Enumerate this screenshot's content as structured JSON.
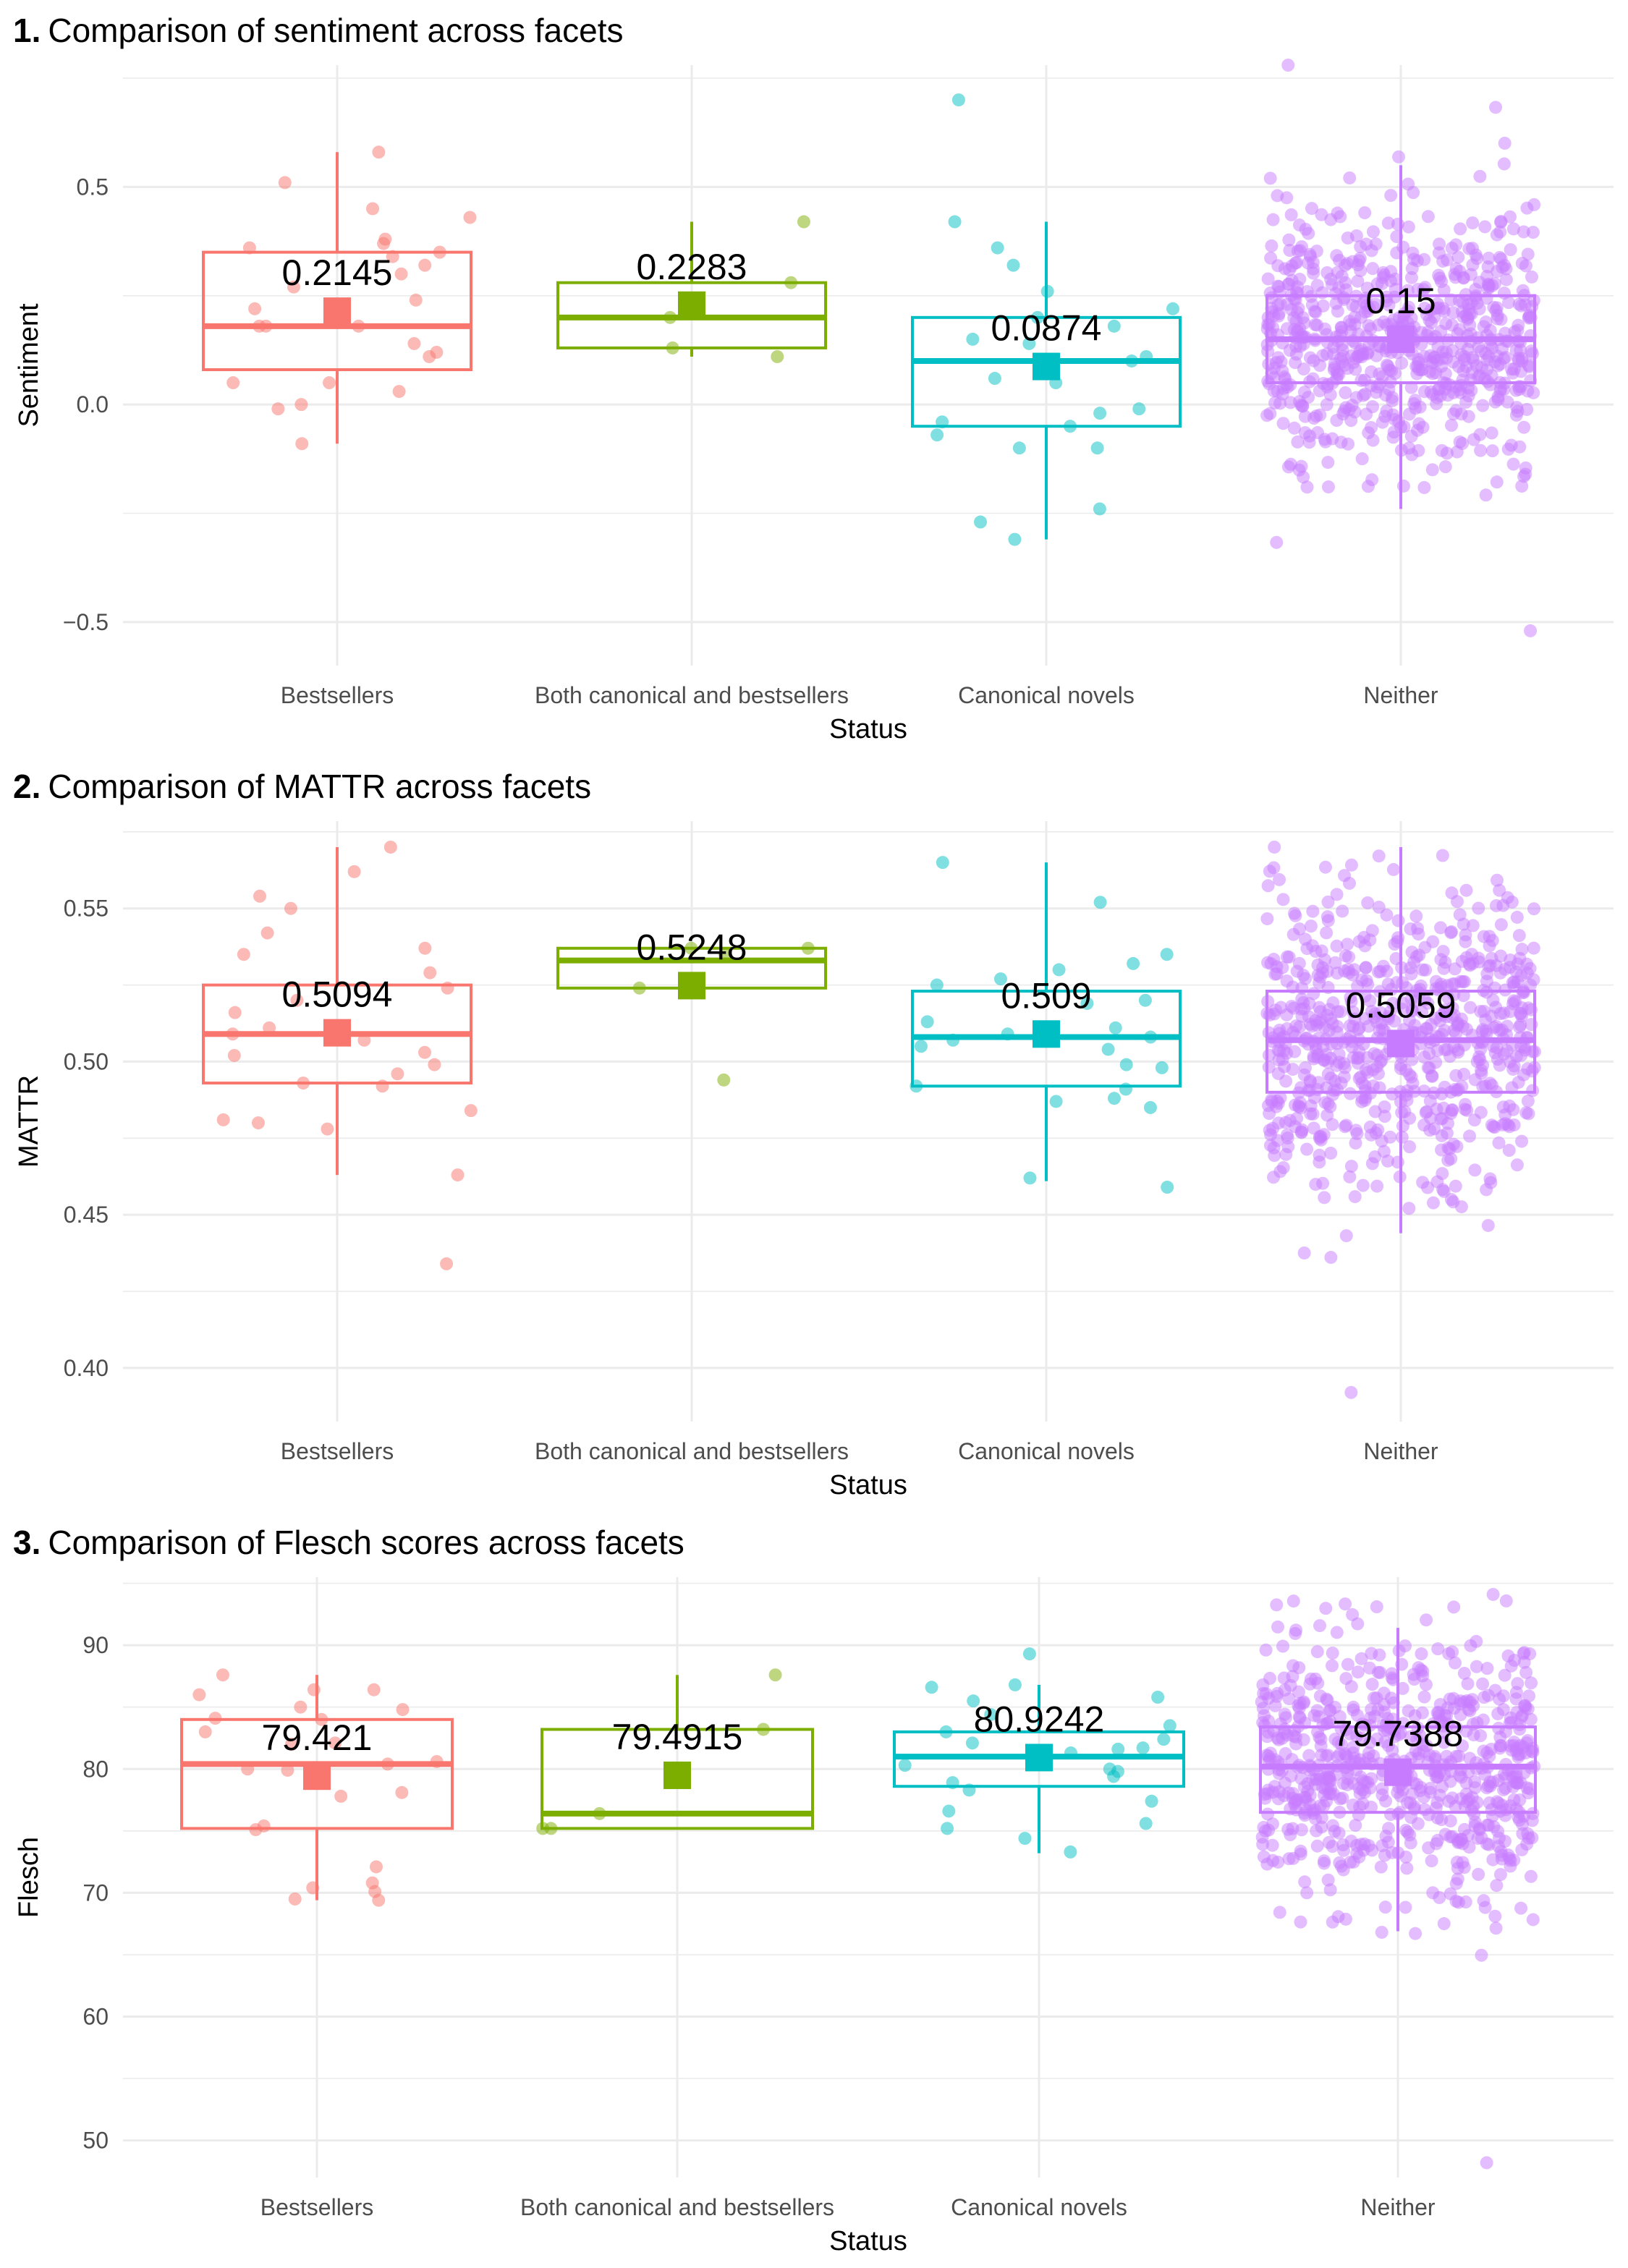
{
  "colors": {
    "Bestsellers": "#F8766D",
    "Both canonical and bestsellers": "#7CAE00",
    "Canonical novels": "#00BFC4",
    "Neither": "#C77CFF",
    "grid": "#EBEBEB",
    "axis_text": "#4D4D4D",
    "title_text": "#000000"
  },
  "chart_data": [
    {
      "type": "boxplot",
      "number": "1.",
      "title": "Comparison of sentiment across facets",
      "xlabel": "Status",
      "ylabel": "Sentiment",
      "ylim": [
        -0.6,
        0.78
      ],
      "yticks": [
        -0.5,
        0.0,
        0.5
      ],
      "ytick_labels": [
        "−0.5",
        "0.0",
        "0.5"
      ],
      "grid": true,
      "categories": [
        "Bestsellers",
        "Both canonical and bestsellers",
        "Canonical novels",
        "Neither"
      ],
      "boxes": [
        {
          "q1": 0.08,
          "median": 0.18,
          "q3": 0.35,
          "whisker_low": -0.09,
          "whisker_high": 0.58
        },
        {
          "q1": 0.13,
          "median": 0.2,
          "q3": 0.28,
          "whisker_low": 0.11,
          "whisker_high": 0.42
        },
        {
          "q1": -0.05,
          "median": 0.1,
          "q3": 0.2,
          "whisker_low": -0.31,
          "whisker_high": 0.42
        },
        {
          "q1": 0.05,
          "median": 0.15,
          "q3": 0.25,
          "whisker_low": -0.24,
          "whisker_high": 0.55
        }
      ],
      "means": [
        0.2145,
        0.2283,
        0.0874,
        0.15
      ],
      "mean_labels": [
        "0.2145",
        "0.2283",
        "0.0874",
        "0.15"
      ],
      "jitter_points": [
        [
          0.58,
          0.51,
          0.45,
          0.43,
          0.38,
          0.37,
          0.36,
          0.35,
          0.34,
          0.32,
          0.3,
          0.27,
          0.24,
          0.22,
          0.18,
          0.18,
          0.18,
          0.14,
          0.12,
          0.11,
          0.05,
          0.05,
          0.03,
          0.0,
          -0.01,
          -0.09
        ],
        [
          0.42,
          0.28,
          0.2,
          0.13,
          0.11
        ],
        [
          0.7,
          0.42,
          0.36,
          0.32,
          0.26,
          0.22,
          0.2,
          0.18,
          0.15,
          0.14,
          0.11,
          0.1,
          0.06,
          0.05,
          -0.01,
          -0.02,
          -0.04,
          -0.05,
          -0.07,
          -0.1,
          -0.1,
          -0.24,
          -0.27,
          -0.31
        ],
        {
          "generated": true,
          "n": 700,
          "center": 0.15,
          "spread": 0.14,
          "min": -0.52,
          "max": 0.78
        }
      ]
    },
    {
      "type": "boxplot",
      "number": "2.",
      "title": "Comparison of MATTR across facets",
      "xlabel": "Status",
      "ylabel": "MATTR",
      "ylim": [
        0.3825,
        0.5785
      ],
      "yticks": [
        0.4,
        0.45,
        0.5,
        0.55
      ],
      "ytick_labels": [
        "0.40",
        "0.45",
        "0.50",
        "0.55"
      ],
      "grid": true,
      "categories": [
        "Bestsellers",
        "Both canonical and bestsellers",
        "Canonical novels",
        "Neither"
      ],
      "boxes": [
        {
          "q1": 0.493,
          "median": 0.509,
          "q3": 0.525,
          "whisker_low": 0.463,
          "whisker_high": 0.57
        },
        {
          "q1": 0.524,
          "median": 0.533,
          "q3": 0.537,
          "whisker_low": 0.524,
          "whisker_high": 0.537
        },
        {
          "q1": 0.492,
          "median": 0.508,
          "q3": 0.523,
          "whisker_low": 0.461,
          "whisker_high": 0.565
        },
        {
          "q1": 0.49,
          "median": 0.507,
          "q3": 0.523,
          "whisker_low": 0.444,
          "whisker_high": 0.57
        }
      ],
      "means": [
        0.5094,
        0.5248,
        0.509,
        0.5059
      ],
      "mean_labels": [
        "0.5094",
        "0.5248",
        "0.509",
        "0.5059"
      ],
      "jitter_points": [
        [
          0.57,
          0.562,
          0.554,
          0.55,
          0.542,
          0.537,
          0.535,
          0.529,
          0.524,
          0.52,
          0.516,
          0.511,
          0.509,
          0.507,
          0.503,
          0.502,
          0.499,
          0.496,
          0.493,
          0.492,
          0.484,
          0.481,
          0.48,
          0.478,
          0.463,
          0.434
        ],
        [
          0.537,
          0.537,
          0.535,
          0.524,
          0.494
        ],
        [
          0.565,
          0.552,
          0.535,
          0.532,
          0.53,
          0.527,
          0.525,
          0.52,
          0.519,
          0.513,
          0.511,
          0.509,
          0.508,
          0.507,
          0.505,
          0.504,
          0.499,
          0.498,
          0.492,
          0.491,
          0.488,
          0.487,
          0.485,
          0.462,
          0.459
        ],
        {
          "generated": true,
          "n": 700,
          "center": 0.506,
          "spread": 0.024,
          "min": 0.392,
          "max": 0.57
        }
      ]
    },
    {
      "type": "boxplot",
      "number": "3.",
      "title": "Comparison of Flesch scores across facets",
      "xlabel": "Status",
      "ylabel": "Flesch",
      "ylim": [
        47.0,
        95.5
      ],
      "yticks": [
        50,
        60,
        70,
        80,
        90
      ],
      "ytick_labels": [
        "50",
        "60",
        "70",
        "80",
        "90"
      ],
      "grid": true,
      "categories": [
        "Bestsellers",
        "Both canonical and bestsellers",
        "Canonical novels",
        "Neither"
      ],
      "boxes": [
        {
          "q1": 75.2,
          "median": 80.4,
          "q3": 84.0,
          "whisker_low": 69.4,
          "whisker_high": 87.6
        },
        {
          "q1": 75.2,
          "median": 76.4,
          "q3": 83.2,
          "whisker_low": 75.2,
          "whisker_high": 87.6
        },
        {
          "q1": 78.6,
          "median": 81.0,
          "q3": 83.0,
          "whisker_low": 73.2,
          "whisker_high": 86.8
        },
        {
          "q1": 76.5,
          "median": 80.2,
          "q3": 83.4,
          "whisker_low": 66.9,
          "whisker_high": 91.4
        }
      ],
      "means": [
        79.421,
        79.4915,
        80.9242,
        79.7388
      ],
      "mean_labels": [
        "79.421",
        "79.4915",
        "80.9242",
        "79.7388"
      ],
      "jitter_points": [
        [
          87.6,
          86.4,
          86.4,
          86.0,
          85.0,
          84.8,
          84.1,
          84.0,
          83.0,
          82.1,
          82.0,
          80.6,
          80.4,
          80.0,
          79.9,
          78.1,
          77.8,
          75.4,
          75.1,
          72.1,
          70.8,
          70.4,
          70.1,
          69.5,
          69.4
        ],
        [
          87.6,
          83.2,
          76.4,
          75.2,
          75.2
        ],
        [
          89.3,
          86.8,
          86.6,
          85.8,
          85.5,
          84.4,
          83.5,
          83.0,
          82.4,
          82.1,
          81.7,
          81.6,
          81.3,
          80.3,
          80.0,
          79.8,
          79.4,
          78.9,
          78.3,
          77.4,
          76.6,
          75.6,
          75.2,
          74.4,
          73.3
        ],
        {
          "generated": true,
          "n": 700,
          "center": 80.0,
          "spread": 5.0,
          "min": 48.2,
          "max": 94.1
        }
      ]
    }
  ]
}
